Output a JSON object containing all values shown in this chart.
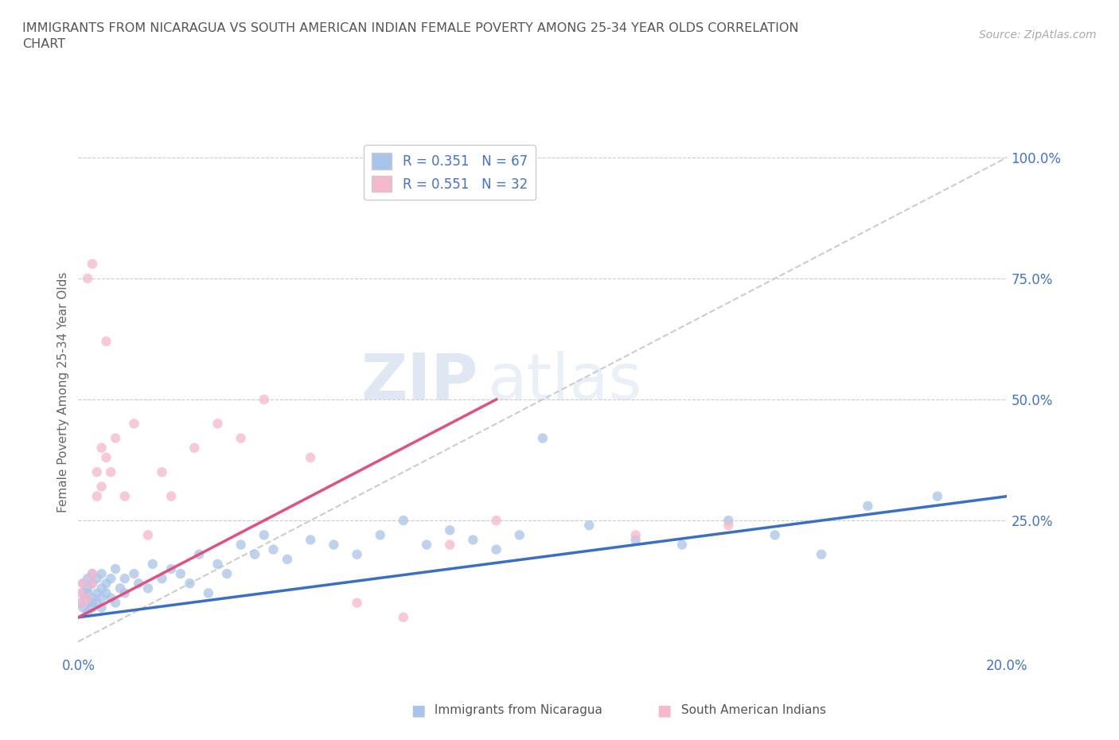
{
  "title": "IMMIGRANTS FROM NICARAGUA VS SOUTH AMERICAN INDIAN FEMALE POVERTY AMONG 25-34 YEAR OLDS CORRELATION\nCHART",
  "source": "Source: ZipAtlas.com",
  "ylabel": "Female Poverty Among 25-34 Year Olds",
  "xlim": [
    0.0,
    0.2
  ],
  "ylim": [
    -0.05,
    1.05
  ],
  "blue_color": "#a8c4e8",
  "pink_color": "#f5b8cc",
  "blue_line_color": "#3a6fc4",
  "pink_line_color": "#e05080",
  "ref_line_color": "#cccccc",
  "legend_R1": "R = 0.351",
  "legend_N1": "N = 67",
  "legend_R2": "R = 0.551",
  "legend_N2": "N = 32",
  "watermark_zip": "ZIP",
  "watermark_atlas": "atlas",
  "blue_scatter_x": [
    0.0005,
    0.001,
    0.001,
    0.001,
    0.0015,
    0.002,
    0.002,
    0.002,
    0.002,
    0.002,
    0.003,
    0.003,
    0.003,
    0.003,
    0.003,
    0.004,
    0.004,
    0.004,
    0.005,
    0.005,
    0.005,
    0.005,
    0.006,
    0.006,
    0.007,
    0.007,
    0.008,
    0.008,
    0.009,
    0.01,
    0.01,
    0.012,
    0.013,
    0.015,
    0.016,
    0.018,
    0.02,
    0.022,
    0.024,
    0.026,
    0.028,
    0.03,
    0.032,
    0.035,
    0.038,
    0.04,
    0.042,
    0.045,
    0.05,
    0.055,
    0.06,
    0.065,
    0.07,
    0.075,
    0.08,
    0.085,
    0.09,
    0.095,
    0.1,
    0.11,
    0.12,
    0.13,
    0.14,
    0.15,
    0.16,
    0.17,
    0.185
  ],
  "blue_scatter_y": [
    0.08,
    0.1,
    0.07,
    0.12,
    0.09,
    0.11,
    0.08,
    0.13,
    0.06,
    0.1,
    0.09,
    0.12,
    0.07,
    0.14,
    0.08,
    0.1,
    0.13,
    0.08,
    0.11,
    0.09,
    0.14,
    0.07,
    0.12,
    0.1,
    0.13,
    0.09,
    0.15,
    0.08,
    0.11,
    0.13,
    0.1,
    0.14,
    0.12,
    0.11,
    0.16,
    0.13,
    0.15,
    0.14,
    0.12,
    0.18,
    0.1,
    0.16,
    0.14,
    0.2,
    0.18,
    0.22,
    0.19,
    0.17,
    0.21,
    0.2,
    0.18,
    0.22,
    0.25,
    0.2,
    0.23,
    0.21,
    0.19,
    0.22,
    0.42,
    0.24,
    0.21,
    0.2,
    0.25,
    0.22,
    0.18,
    0.28,
    0.3
  ],
  "pink_scatter_x": [
    0.0005,
    0.001,
    0.001,
    0.002,
    0.002,
    0.003,
    0.003,
    0.003,
    0.004,
    0.004,
    0.005,
    0.005,
    0.006,
    0.006,
    0.007,
    0.008,
    0.01,
    0.012,
    0.015,
    0.018,
    0.02,
    0.025,
    0.03,
    0.035,
    0.04,
    0.05,
    0.06,
    0.07,
    0.08,
    0.09,
    0.12,
    0.14
  ],
  "pink_scatter_y": [
    0.1,
    0.08,
    0.12,
    0.09,
    0.75,
    0.78,
    0.14,
    0.12,
    0.3,
    0.35,
    0.4,
    0.32,
    0.62,
    0.38,
    0.35,
    0.42,
    0.3,
    0.45,
    0.22,
    0.35,
    0.3,
    0.4,
    0.45,
    0.42,
    0.5,
    0.38,
    0.08,
    0.05,
    0.2,
    0.25,
    0.22,
    0.24
  ],
  "blue_trendline": [
    0.05,
    0.3
  ],
  "pink_trendline_x": [
    0.0,
    0.09
  ],
  "pink_trendline_y": [
    0.05,
    0.5
  ]
}
